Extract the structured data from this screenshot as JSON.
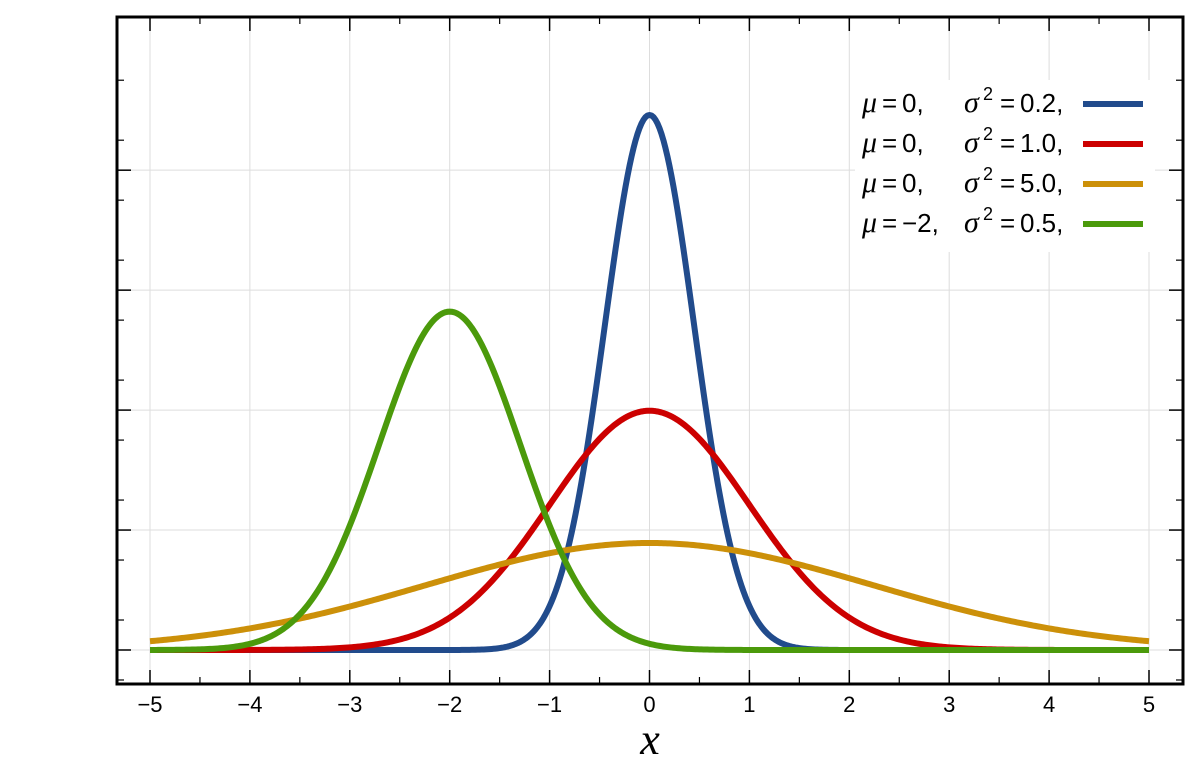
{
  "chart_data": {
    "type": "line",
    "xlabel": "x",
    "ylabel": "",
    "xlim": [
      -5,
      5
    ],
    "ylim": [
      -0.05,
      0.95
    ],
    "x_ticks": [
      -5,
      -4,
      -3,
      -2,
      -1,
      0,
      1,
      2,
      3,
      4,
      5
    ],
    "x_tick_labels": [
      "−5",
      "−4",
      "−3",
      "−2",
      "−1",
      "0",
      "1",
      "2",
      "3",
      "4",
      "5"
    ],
    "y_ticks": [
      0,
      0.2,
      0.4,
      0.6,
      0.8
    ],
    "grid": true,
    "legend_position": "top-right",
    "series": [
      {
        "mu_label": "0,",
        "sigma2_label": "0.2,",
        "mu": 0,
        "sigma2": 0.2,
        "color": "#214b8c"
      },
      {
        "mu_label": "0,",
        "sigma2_label": "1.0,",
        "mu": 0,
        "sigma2": 1.0,
        "color": "#cc0000"
      },
      {
        "mu_label": "0,",
        "sigma2_label": "5.0,",
        "mu": 0,
        "sigma2": 5.0,
        "color": "#cc9009"
      },
      {
        "mu_label": "−2,",
        "sigma2_label": "0.5,",
        "mu": -2,
        "sigma2": 0.5,
        "color": "#4b9a0b"
      }
    ],
    "legend_symbols": {
      "mu": "μ",
      "equals": "=",
      "sigma": "σ",
      "squared": "2"
    }
  }
}
